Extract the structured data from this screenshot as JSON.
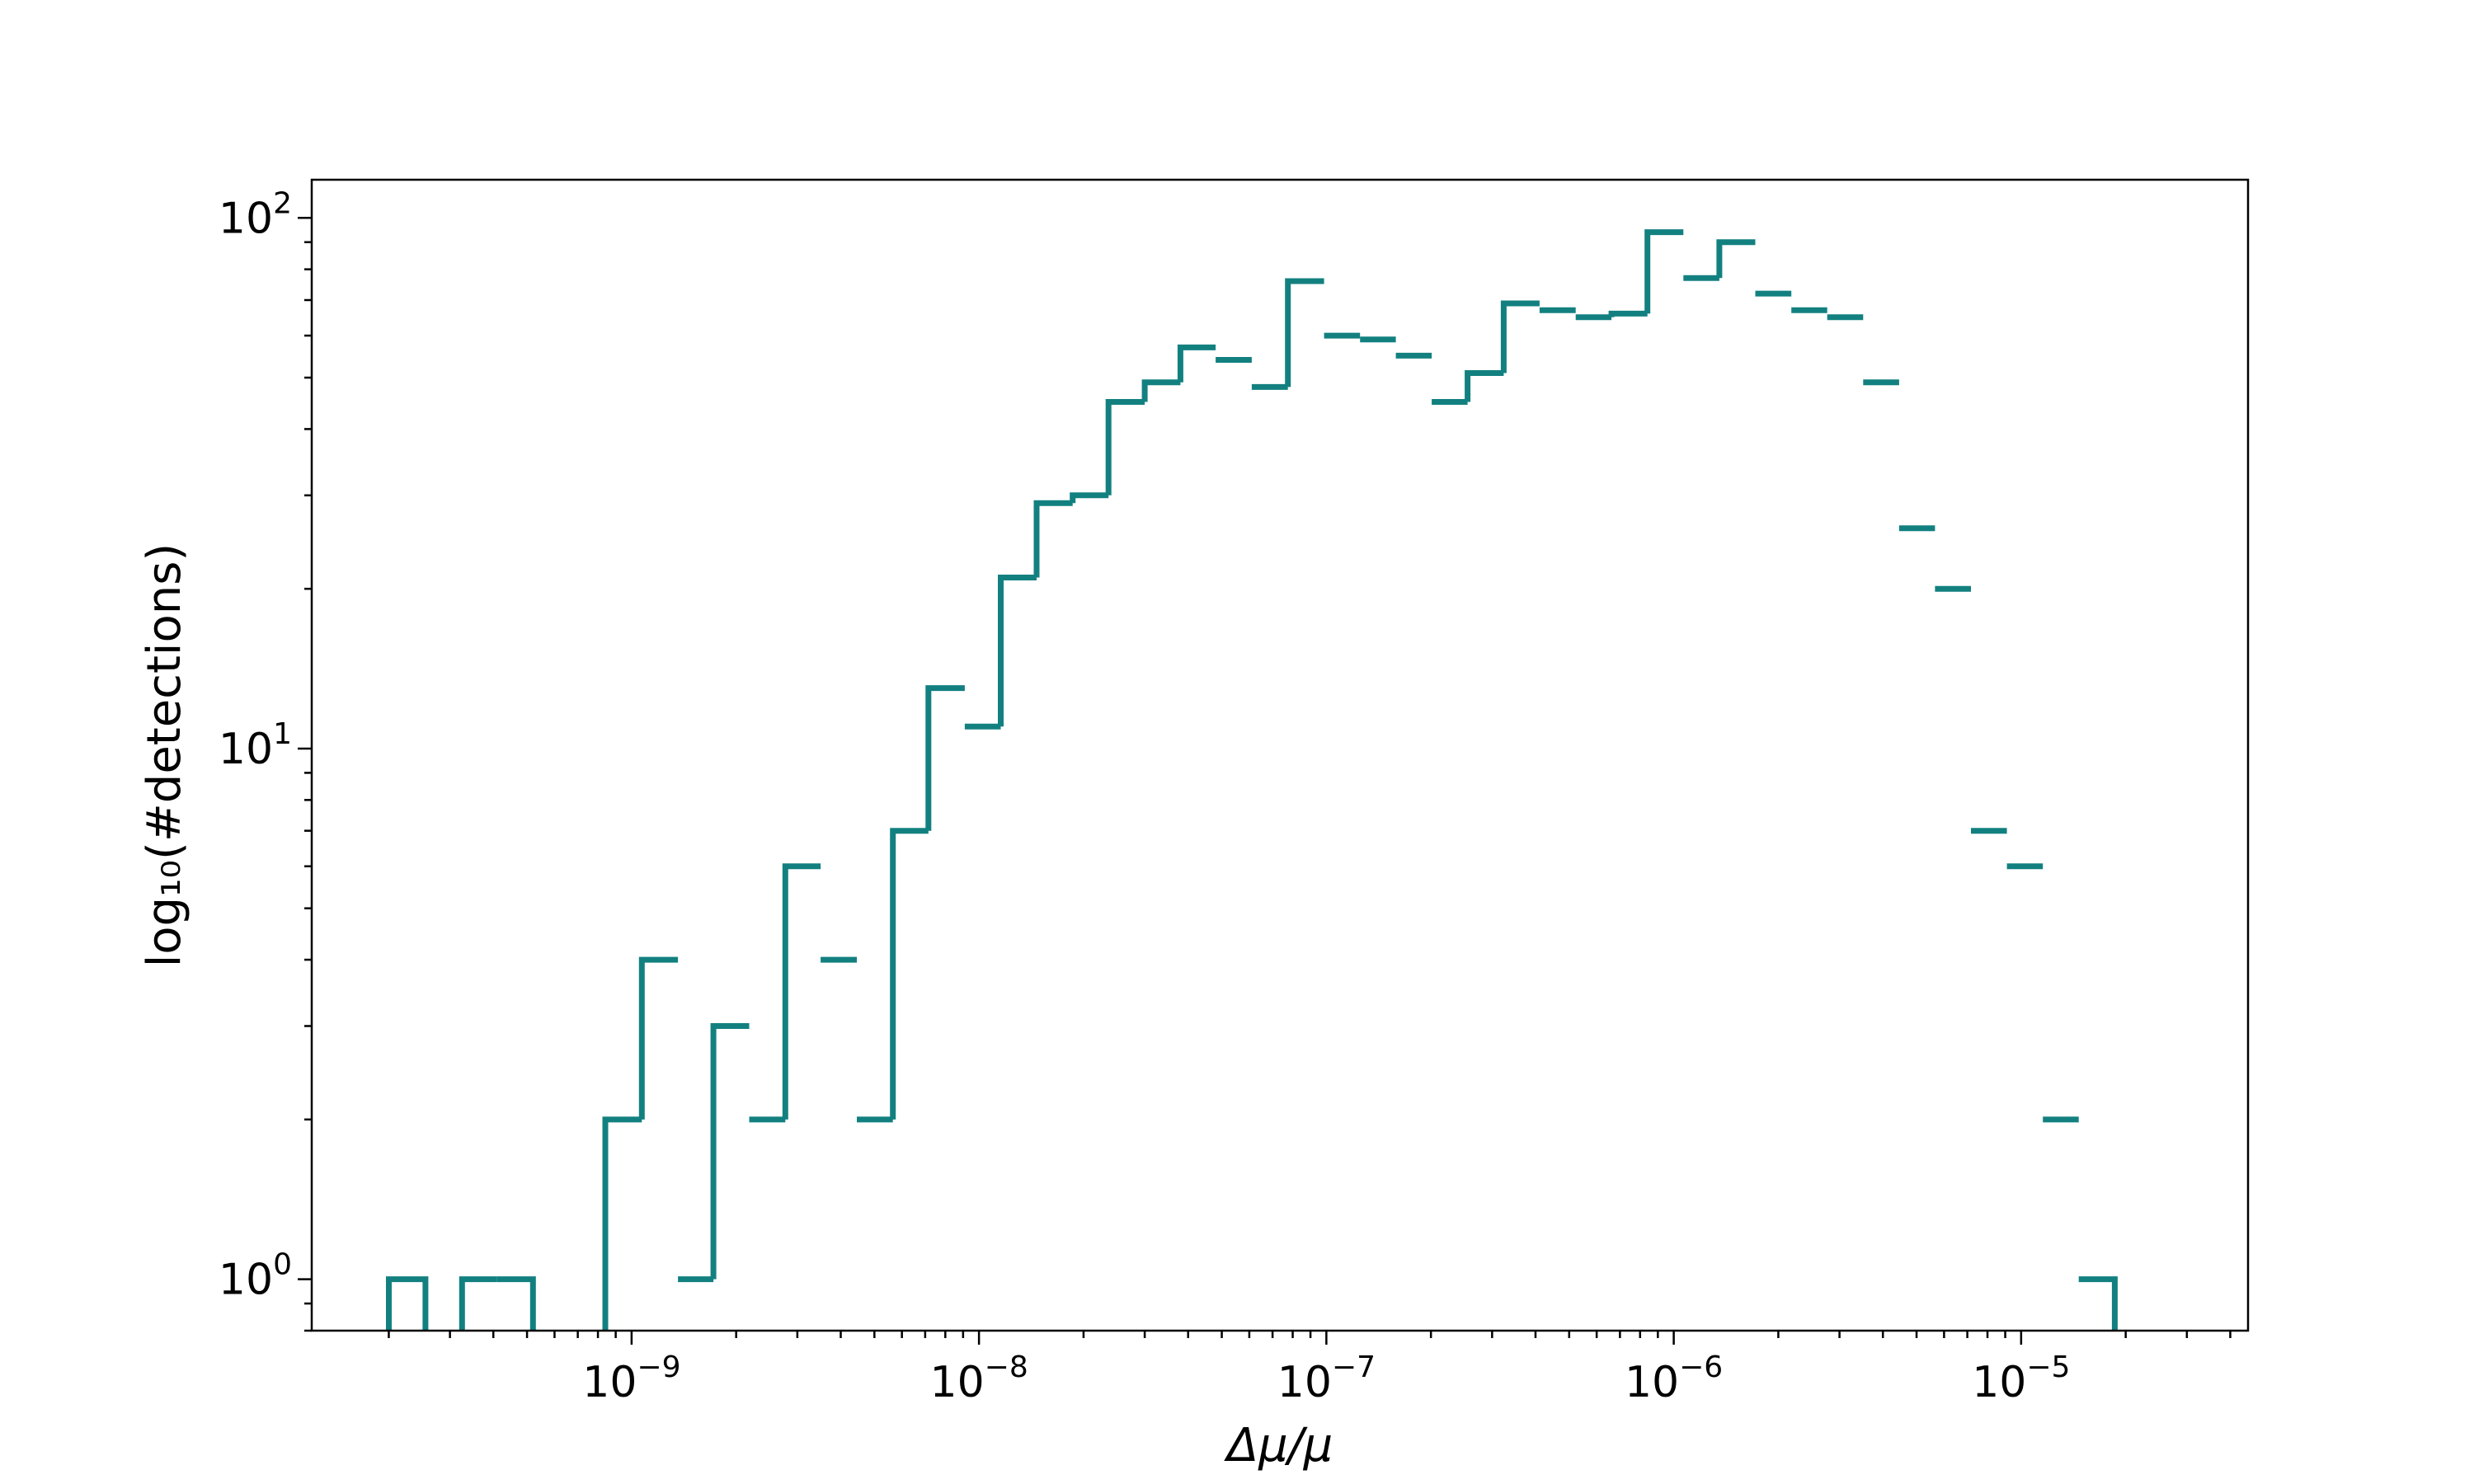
{
  "chart_data": {
    "type": "histogram",
    "xlabel": "Δμ/μ",
    "ylabel": "log₁₀(#detections)",
    "xscale": "log",
    "yscale": "log",
    "xlim": [
      1.2e-10,
      4.5e-05
    ],
    "ylim": [
      0.8,
      118
    ],
    "x_ticks": [
      {
        "value": 1e-09,
        "base": "10",
        "exp": "−9"
      },
      {
        "value": 1e-08,
        "base": "10",
        "exp": "−8"
      },
      {
        "value": 1e-07,
        "base": "10",
        "exp": "−7"
      },
      {
        "value": 1e-06,
        "base": "10",
        "exp": "−6"
      },
      {
        "value": 1e-05,
        "base": "10",
        "exp": "−5"
      }
    ],
    "y_ticks": [
      {
        "value": 1,
        "base": "10",
        "exp": "0"
      },
      {
        "value": 10,
        "base": "10",
        "exp": "1"
      },
      {
        "value": 100,
        "base": "10",
        "exp": "2"
      }
    ],
    "line_color": "#138080",
    "grid": false,
    "legend": "none",
    "bin_edges": [
      2e-10,
      2.55e-10,
      3.25e-10,
      4.1e-10,
      5.2e-10,
      6.6e-10,
      8.4e-10,
      1.07e-09,
      1.36e-09,
      1.72e-09,
      2.18e-09,
      2.77e-09,
      3.5e-09,
      4.45e-09,
      5.65e-09,
      7.15e-09,
      9.1e-09,
      1.155e-08,
      1.465e-08,
      1.86e-08,
      2.36e-08,
      3e-08,
      3.8e-08,
      4.8e-08,
      6.1e-08,
      7.75e-08,
      9.85e-08,
      1.25e-07,
      1.585e-07,
      2.01e-07,
      2.55e-07,
      3.24e-07,
      4.11e-07,
      5.22e-07,
      6.62e-07,
      8.4e-07,
      1.066e-06,
      1.353e-06,
      1.717e-06,
      2.18e-06,
      2.765e-06,
      3.51e-06,
      4.455e-06,
      5.65e-06,
      7.17e-06,
      9.1e-06,
      1.155e-05,
      1.465e-05,
      1.86e-05,
      2.36e-05
    ],
    "counts": [
      1,
      0,
      1,
      1,
      0,
      0,
      2,
      4,
      1,
      3,
      2,
      6,
      4,
      2,
      7,
      13,
      11,
      21,
      29,
      30,
      45,
      49,
      57,
      54,
      48,
      76,
      60,
      59,
      55,
      45,
      51,
      69,
      67,
      65,
      66,
      94,
      77,
      90,
      72,
      67,
      65,
      49,
      26,
      20,
      7,
      6,
      2,
      1,
      0
    ]
  }
}
